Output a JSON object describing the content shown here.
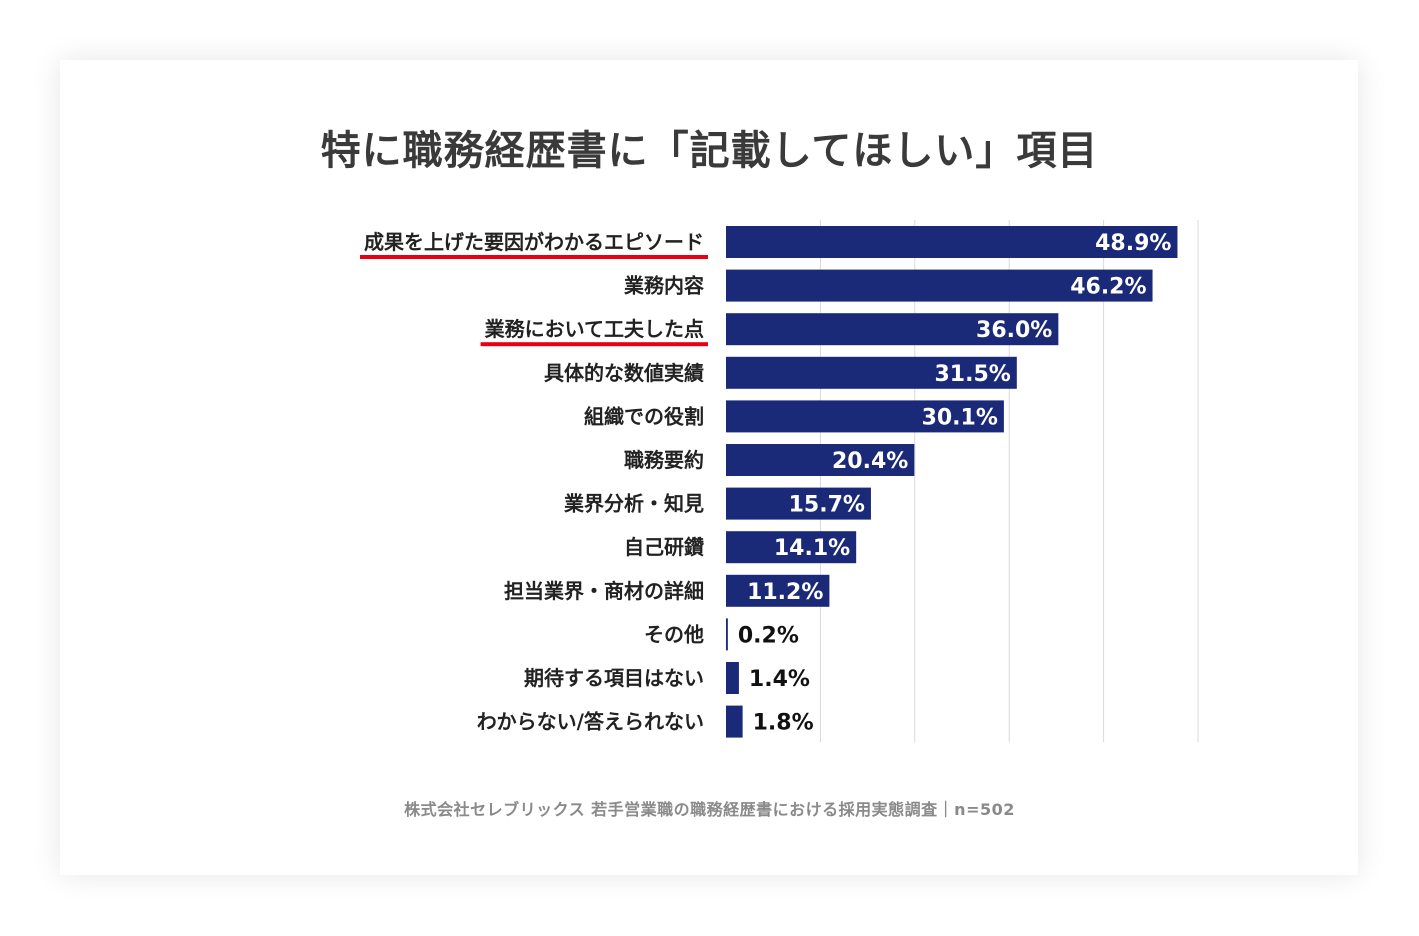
{
  "title": "特に職務経歴書に「記載してほしい」項目",
  "footer": "株式会社セレブリックス 若手営業職の職務経歴書における採用実態調査｜n=502",
  "colors": {
    "bar": "#1b2a78",
    "highlight_underline": "#e60012",
    "grid": "#d9d9d9",
    "label": "#222222"
  },
  "chart_data": {
    "type": "bar",
    "orientation": "horizontal",
    "categories": [
      "成果を上げた要因がわかるエピソード",
      "業務内容",
      "業務において工夫した点",
      "具体的な数値実績",
      "組織での役割",
      "職務要約",
      "業界分析・知見",
      "自己研鑽",
      "担当業界・商材の詳細",
      "その他",
      "期待する項目はない",
      "わからない/答えられない"
    ],
    "values": [
      48.9,
      46.2,
      36.0,
      31.5,
      30.1,
      20.4,
      15.7,
      14.1,
      11.2,
      0.2,
      1.4,
      1.8
    ],
    "data_labels": [
      "48.9%",
      "46.2%",
      "36.0%",
      "31.5%",
      "30.1%",
      "20.4%",
      "15.7%",
      "14.1%",
      "11.2%",
      "0.2%",
      "1.4%",
      "1.8%"
    ],
    "highlighted": [
      true,
      false,
      true,
      false,
      false,
      false,
      false,
      false,
      false,
      false,
      false,
      false
    ],
    "xlim": [
      0,
      50
    ],
    "grid": true,
    "legend": "none"
  }
}
